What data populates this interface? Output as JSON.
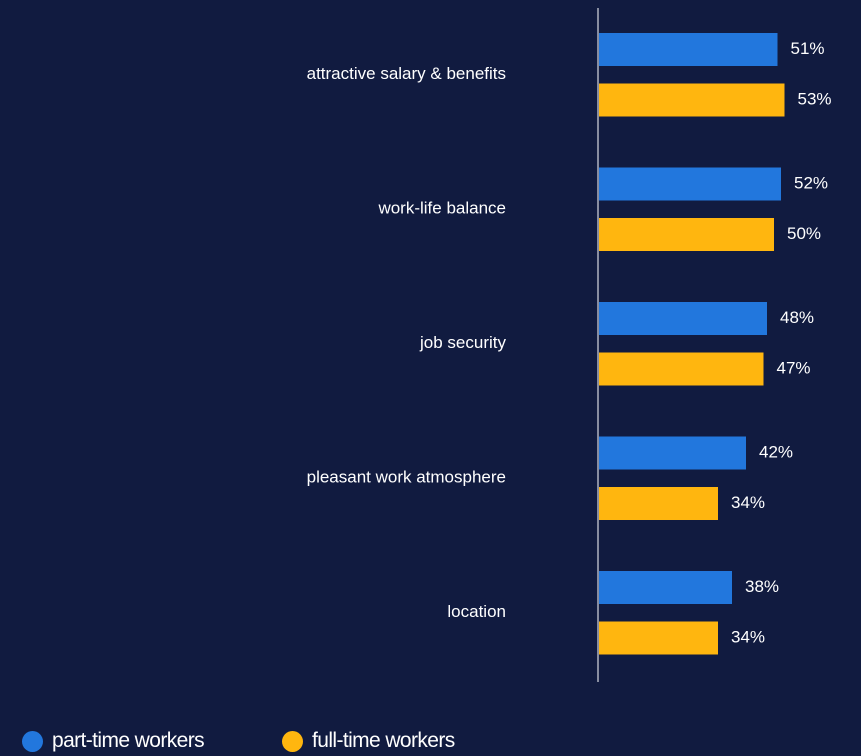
{
  "chart_data": {
    "type": "bar",
    "orientation": "horizontal",
    "categories": [
      "attractive salary & benefits",
      "work-life balance",
      "job security",
      "pleasant work atmosphere",
      "location"
    ],
    "series": [
      {
        "name": "part-time workers",
        "color": "#2277dd",
        "values": [
          51,
          52,
          48,
          42,
          38
        ],
        "labels": [
          "51%",
          "52%",
          "48%",
          "42%",
          "38%"
        ]
      },
      {
        "name": "full-time workers",
        "color": "#ffb60f",
        "values": [
          53,
          50,
          47,
          34,
          34
        ],
        "labels": [
          "53%",
          "50%",
          "47%",
          "34%",
          "34%"
        ]
      }
    ],
    "unit": "%",
    "xlim": [
      0,
      100
    ],
    "grid": false,
    "legend_position": "bottom"
  },
  "colors": {
    "background": "#111b40",
    "axis": "#ffffff",
    "text": "#ffffff"
  }
}
